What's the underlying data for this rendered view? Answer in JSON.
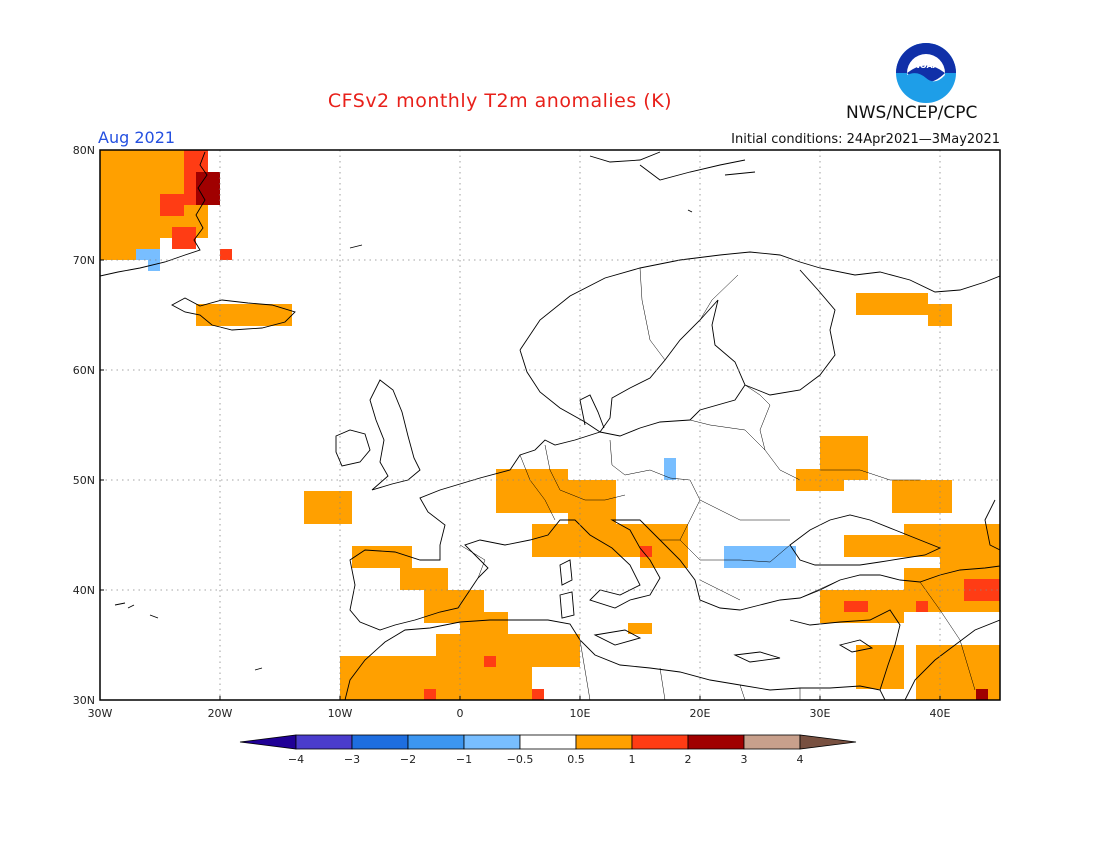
{
  "header": {
    "title": "CFSv2 monthly T2m anomalies (K)",
    "period": "Aug 2021",
    "initial_conditions": "Initial conditions: 24Apr2021—3May2021",
    "agency": "NWS/NCEP/CPC",
    "logo_text": "NOAA"
  },
  "map": {
    "lon_range": [
      -30,
      45
    ],
    "lat_range": [
      30,
      80
    ],
    "lat_ticks": [
      {
        "v": 80,
        "label": "80N"
      },
      {
        "v": 70,
        "label": "70N"
      },
      {
        "v": 60,
        "label": "60N"
      },
      {
        "v": 50,
        "label": "50N"
      },
      {
        "v": 40,
        "label": "40N"
      },
      {
        "v": 30,
        "label": "30N"
      }
    ],
    "lon_ticks": [
      {
        "v": -30,
        "label": "30W"
      },
      {
        "v": -20,
        "label": "20W"
      },
      {
        "v": -10,
        "label": "10W"
      },
      {
        "v": 0,
        "label": "0"
      },
      {
        "v": 10,
        "label": "10E"
      },
      {
        "v": 20,
        "label": "20E"
      },
      {
        "v": 30,
        "label": "30E"
      },
      {
        "v": 40,
        "label": "40E"
      }
    ],
    "grid_lon": [
      -20,
      -10,
      0,
      10,
      20,
      30,
      40
    ],
    "grid_lat": [
      40,
      50,
      60,
      70
    ],
    "anomaly_regions": [
      {
        "level": "0.5-1",
        "cells": [
          [
            -30,
            80,
            -21,
            72
          ],
          [
            -30,
            72,
            -25,
            70
          ],
          [
            -22,
            66,
            -14,
            64
          ],
          [
            -13,
            49,
            -9,
            46
          ],
          [
            -9,
            44,
            -4,
            42
          ],
          [
            -5,
            42,
            -1,
            40
          ],
          [
            -3,
            40,
            2,
            37
          ],
          [
            0,
            38,
            4,
            36
          ],
          [
            -10,
            34,
            6,
            30
          ],
          [
            -2,
            36,
            10,
            33
          ],
          [
            3,
            51,
            9,
            47
          ],
          [
            9,
            50,
            13,
            46
          ],
          [
            6,
            46,
            18,
            43
          ],
          [
            15,
            46,
            19,
            42
          ],
          [
            14,
            37,
            16,
            36
          ],
          [
            30,
            54,
            34,
            50
          ],
          [
            28,
            51,
            32,
            49
          ],
          [
            36,
            50,
            41,
            47
          ],
          [
            37,
            46,
            45,
            43
          ],
          [
            32,
            45,
            38,
            43
          ],
          [
            40,
            45,
            45,
            42
          ],
          [
            37,
            42,
            45,
            38
          ],
          [
            30,
            40,
            37,
            37
          ],
          [
            38,
            35,
            45,
            30
          ],
          [
            33,
            35,
            37,
            31
          ],
          [
            33,
            67,
            39,
            65
          ],
          [
            39,
            66,
            41,
            64
          ]
        ]
      },
      {
        "level": "1-2",
        "cells": [
          [
            -23,
            80,
            -21,
            75
          ],
          [
            -25,
            76,
            -23,
            74
          ],
          [
            -24,
            73,
            -22,
            71
          ],
          [
            -20,
            71,
            -19,
            70
          ],
          [
            2,
            34,
            3,
            33
          ],
          [
            -3,
            31,
            -2,
            30
          ],
          [
            6,
            31,
            7,
            30
          ],
          [
            15,
            44,
            16,
            43
          ],
          [
            32,
            39,
            34,
            38
          ],
          [
            38,
            39,
            39,
            38
          ],
          [
            42,
            41,
            45,
            39
          ]
        ]
      },
      {
        "level": "2-3",
        "cells": [
          [
            -22,
            78,
            -20,
            75
          ],
          [
            43,
            31,
            44,
            30
          ]
        ]
      },
      {
        "level": "-1--0.5",
        "cells": [
          [
            -27,
            71,
            -25,
            70
          ],
          [
            -26,
            70,
            -25,
            69
          ],
          [
            17,
            52,
            18,
            50
          ],
          [
            22,
            44,
            28,
            42
          ],
          [
            26,
            44,
            28,
            43
          ]
        ]
      }
    ],
    "places_unlabeled": []
  },
  "colorbar": {
    "colors": [
      "#200096",
      "#4a3ccc",
      "#1e6ee0",
      "#3c96f0",
      "#78beff",
      "#ffffff",
      "#ffa000",
      "#ff3c14",
      "#a00000",
      "#c8a08c",
      "#785040"
    ],
    "labels": [
      "−4",
      "−3",
      "−2",
      "−1",
      "−0.5",
      "0.5",
      "1",
      "2",
      "3",
      "4"
    ],
    "level_colors": {
      "0.5-1": "#ffa000",
      "1-2": "#ff3c14",
      "2-3": "#a00000",
      "-1--0.5": "#78beff"
    }
  }
}
